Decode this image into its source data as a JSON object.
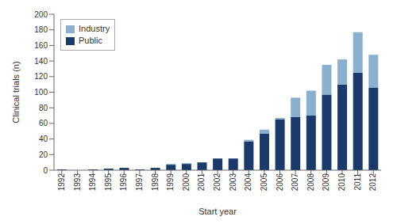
{
  "chart_data": {
    "type": "bar",
    "stacked": true,
    "categories": [
      "1992",
      "1993",
      "1994",
      "1995",
      "1996",
      "1997",
      "1998",
      "1999",
      "2000",
      "2001",
      "2002",
      "2003",
      "2004",
      "2005",
      "2006",
      "2007",
      "2008",
      "2009",
      "2010",
      "2011",
      "2012"
    ],
    "series": [
      {
        "name": "Public",
        "color": "#1a3a6b",
        "values": [
          1,
          0,
          1,
          2,
          3,
          1,
          3,
          7,
          8,
          10,
          15,
          15,
          37,
          47,
          65,
          68,
          70,
          97,
          110,
          125,
          106
        ]
      },
      {
        "name": "Industry",
        "color": "#8ab0d0",
        "values": [
          0,
          0,
          0,
          0,
          0,
          0,
          0,
          1,
          1,
          0,
          0,
          0,
          2,
          5,
          2,
          25,
          32,
          38,
          32,
          52,
          42
        ]
      }
    ],
    "xlabel": "Start year",
    "ylabel": "Clinical trials (n)",
    "ylim": [
      0,
      200
    ],
    "yticks": [
      0,
      20,
      40,
      60,
      80,
      100,
      120,
      140,
      160,
      180,
      200
    ],
    "grid": false,
    "legend": "upper left"
  }
}
